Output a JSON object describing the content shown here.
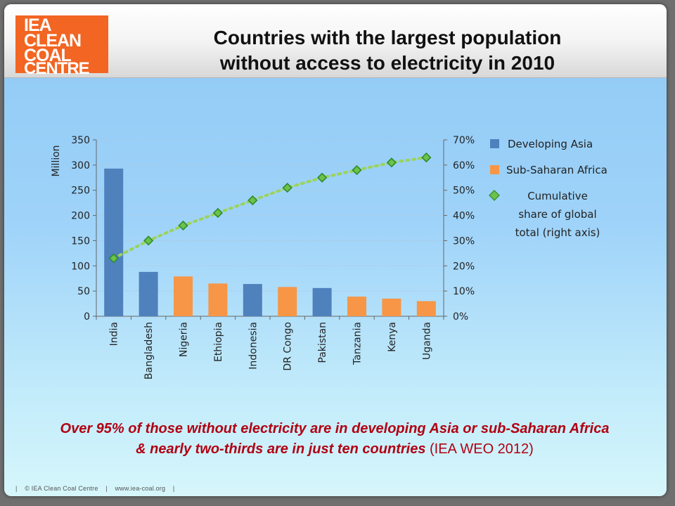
{
  "logo": {
    "line1": "IEA",
    "line2": "CLEAN",
    "line3": "COAL",
    "line4": "CENTRE"
  },
  "title_line1": "Countries with the largest population",
  "title_line2": "without access to electricity in 2010",
  "caption_line1": "Over 95% of those without electricity are in developing Asia or sub-Saharan Africa",
  "caption_line2": "& nearly two-thirds are in just ten countries",
  "caption_source": "(IEA WEO 2012)",
  "footer": {
    "sep1": "|",
    "copyright": "© IEA Clean Coal Centre",
    "sep2": "|",
    "url": "www.iea-coal.org",
    "sep3": "|"
  },
  "colors": {
    "asia": "#4f81bd",
    "africa": "#f79646",
    "cumulative": "#9bd35a",
    "diamond_fill": "#6cc24a",
    "diamond_stroke": "#2e8b2e"
  },
  "chart_data": {
    "type": "bar",
    "ylabel": "Million",
    "ylim": [
      0,
      350
    ],
    "yticks": [
      "0",
      "50",
      "100",
      "150",
      "200",
      "250",
      "300",
      "350"
    ],
    "y2lim": [
      0,
      70
    ],
    "y2ticks": [
      "0%",
      "10%",
      "20%",
      "30%",
      "40%",
      "50%",
      "60%",
      "70%"
    ],
    "categories": [
      "India",
      "Bangladesh",
      "Nigeria",
      "Ethiopia",
      "Indonesia",
      "DR Congo",
      "Pakistan",
      "Tanzania",
      "Kenya",
      "Uganda"
    ],
    "values": [
      293,
      88,
      79,
      65,
      64,
      58,
      56,
      39,
      35,
      30
    ],
    "regions": [
      "asia",
      "asia",
      "africa",
      "africa",
      "asia",
      "africa",
      "asia",
      "africa",
      "africa",
      "africa"
    ],
    "cumulative_share_pct": [
      23,
      30,
      36,
      41,
      46,
      51,
      55,
      58,
      61,
      63
    ],
    "grid": true,
    "legend_position": "right",
    "legend": [
      {
        "key": "asia",
        "label": "Developing Asia",
        "marker": "square"
      },
      {
        "key": "africa",
        "label": "Sub-Saharan Africa",
        "marker": "square"
      },
      {
        "key": "cumulative",
        "label_lines": [
          "Cumulative",
          "share of global",
          "total (right axis)"
        ],
        "marker": "diamond"
      }
    ]
  }
}
